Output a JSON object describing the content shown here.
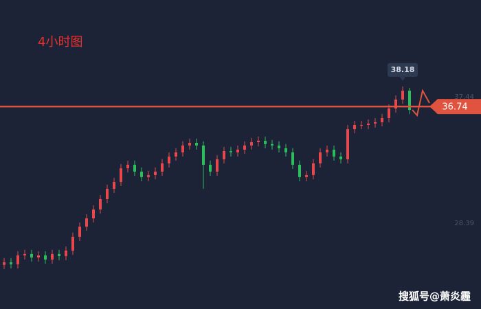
{
  "chart_data": {
    "type": "candlestick",
    "title": "4小时图",
    "watermark": "搜狐号@萧炎霾",
    "open": [
      25.4,
      25.59,
      25.44,
      26.08,
      26.18,
      25.93,
      26.08,
      25.78,
      26.18,
      26.03,
      26.42,
      27.41,
      28.14,
      28.73,
      29.37,
      30.11,
      30.85,
      31.34,
      32.32,
      32.57,
      32.08,
      31.69,
      31.83,
      32.08,
      32.67,
      33.16,
      33.46,
      33.95,
      34.14,
      33.95,
      32.57,
      32.08,
      32.96,
      33.55,
      33.46,
      33.65,
      33.95,
      34.19,
      34.29,
      34.05,
      33.95,
      33.75,
      33.46,
      32.57,
      31.69,
      31.83,
      32.67,
      33.46,
      33.65,
      33.16,
      32.96,
      35.12,
      35.42,
      35.42,
      35.52,
      35.62,
      35.91,
      36.6,
      37.24,
      37.88
    ],
    "high": [
      25.89,
      25.89,
      26.38,
      26.48,
      26.48,
      26.38,
      26.38,
      26.48,
      26.48,
      26.72,
      27.71,
      28.44,
      29.03,
      29.67,
      30.41,
      31.15,
      31.64,
      32.62,
      32.87,
      32.87,
      32.38,
      32.13,
      32.38,
      32.97,
      33.46,
      33.76,
      34.25,
      34.44,
      34.44,
      34.25,
      32.87,
      33.26,
      33.85,
      33.85,
      33.95,
      34.25,
      34.49,
      34.59,
      34.59,
      34.35,
      34.25,
      34.05,
      33.76,
      32.87,
      32.13,
      32.97,
      33.76,
      33.95,
      33.95,
      33.46,
      35.42,
      35.72,
      35.72,
      35.82,
      35.92,
      36.21,
      36.9,
      37.54,
      38.18,
      38.08
    ],
    "low": [
      25.1,
      25.14,
      25.14,
      25.78,
      25.63,
      25.63,
      25.48,
      25.48,
      25.73,
      25.73,
      26.12,
      27.11,
      27.84,
      28.43,
      29.07,
      29.81,
      30.55,
      31.04,
      32.02,
      31.78,
      31.39,
      31.39,
      31.53,
      31.78,
      32.37,
      32.86,
      33.16,
      33.65,
      33.65,
      30.85,
      31.78,
      31.78,
      32.66,
      33.16,
      33.16,
      33.35,
      33.65,
      33.89,
      33.75,
      33.65,
      33.45,
      33.16,
      32.27,
      31.39,
      31.39,
      31.53,
      32.37,
      33.16,
      32.86,
      32.66,
      32.66,
      34.82,
      35.12,
      35.12,
      35.22,
      35.32,
      35.61,
      36.3,
      36.94,
      36.2
    ],
    "close": [
      25.59,
      25.44,
      26.08,
      26.18,
      25.93,
      26.08,
      25.78,
      26.18,
      26.03,
      26.42,
      27.41,
      28.14,
      28.73,
      29.37,
      30.11,
      30.85,
      31.34,
      32.32,
      32.57,
      32.08,
      31.69,
      31.83,
      32.08,
      32.67,
      33.16,
      33.46,
      33.95,
      34.14,
      33.95,
      32.57,
      32.08,
      32.96,
      33.55,
      33.46,
      33.65,
      33.95,
      34.19,
      34.29,
      34.05,
      33.95,
      33.75,
      33.46,
      32.57,
      31.69,
      31.83,
      32.67,
      33.46,
      33.65,
      33.16,
      32.96,
      35.12,
      35.42,
      35.42,
      35.52,
      35.62,
      35.91,
      36.6,
      37.24,
      37.88,
      36.5
    ],
    "up_color": "#e5494d",
    "down_color": "#2dbd5b",
    "price_line": 36.74,
    "price_line_color": "#e0533f",
    "ylim": [
      22.24,
      44.37
    ],
    "yticks": [
      28.39,
      37.44
    ]
  }
}
